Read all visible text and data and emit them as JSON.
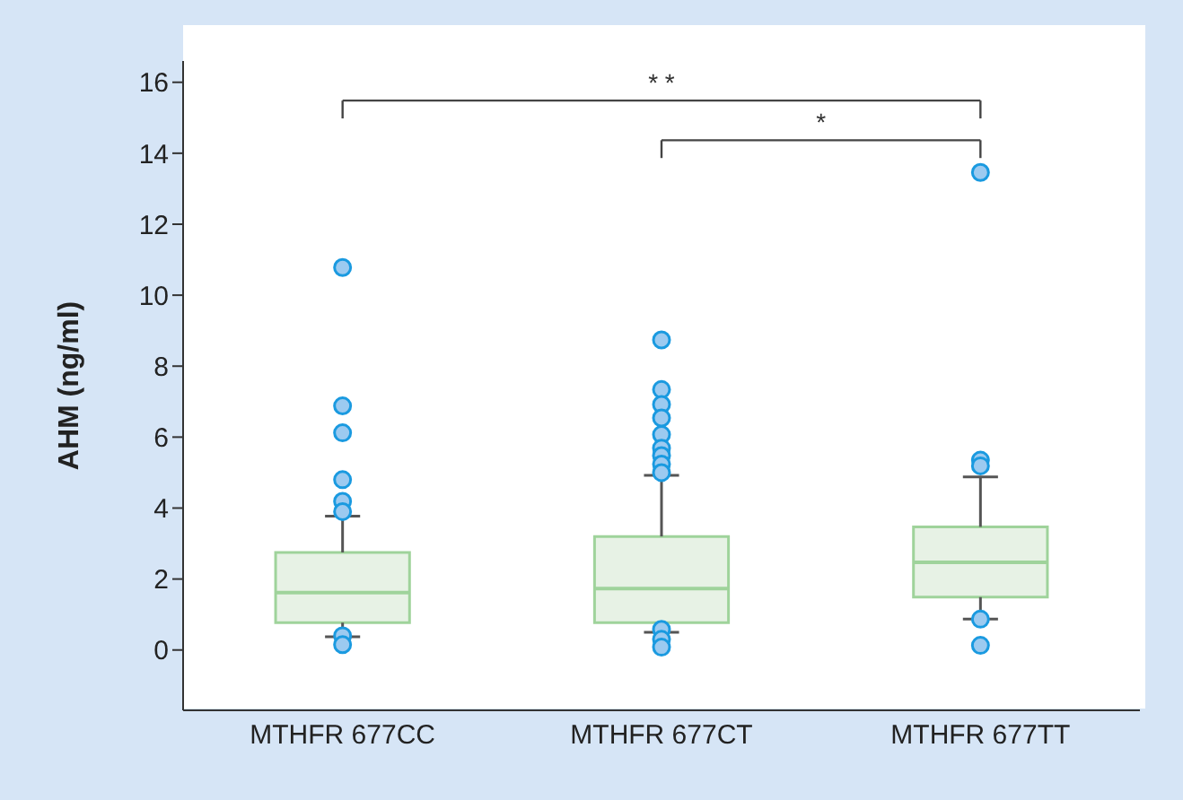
{
  "chart_data": {
    "type": "box",
    "ylabel": "AHM (ng/ml)",
    "categories": [
      "MTHFR 677CC",
      "MTHFR 677CT",
      "MTHFR 677TT"
    ],
    "color": "#9fd39b",
    "boxes": [
      {
        "low": 0.37,
        "q1": 0.77,
        "median": 1.62,
        "q3": 2.75,
        "high": 3.77,
        "outliers": [
          10.78,
          6.88,
          6.12,
          4.8,
          4.19,
          3.9,
          0.4,
          0.15
        ]
      },
      {
        "low": 0.5,
        "q1": 0.77,
        "median": 1.73,
        "q3": 3.2,
        "high": 4.92,
        "outliers": [
          8.74,
          7.34,
          6.92,
          6.54,
          6.07,
          5.69,
          5.48,
          5.24,
          5.0,
          0.58,
          0.3,
          0.08
        ]
      },
      {
        "low": 0.87,
        "q1": 1.49,
        "median": 2.47,
        "q3": 3.47,
        "high": 4.88,
        "outliers": [
          13.46,
          5.35,
          5.19,
          0.87,
          0.13
        ]
      }
    ],
    "ylim": [
      -1.7,
      16.6
    ],
    "yticks": [
      0,
      2,
      4,
      6,
      8,
      10,
      12,
      14,
      16
    ],
    "annotations": [
      "* *",
      "*"
    ]
  }
}
